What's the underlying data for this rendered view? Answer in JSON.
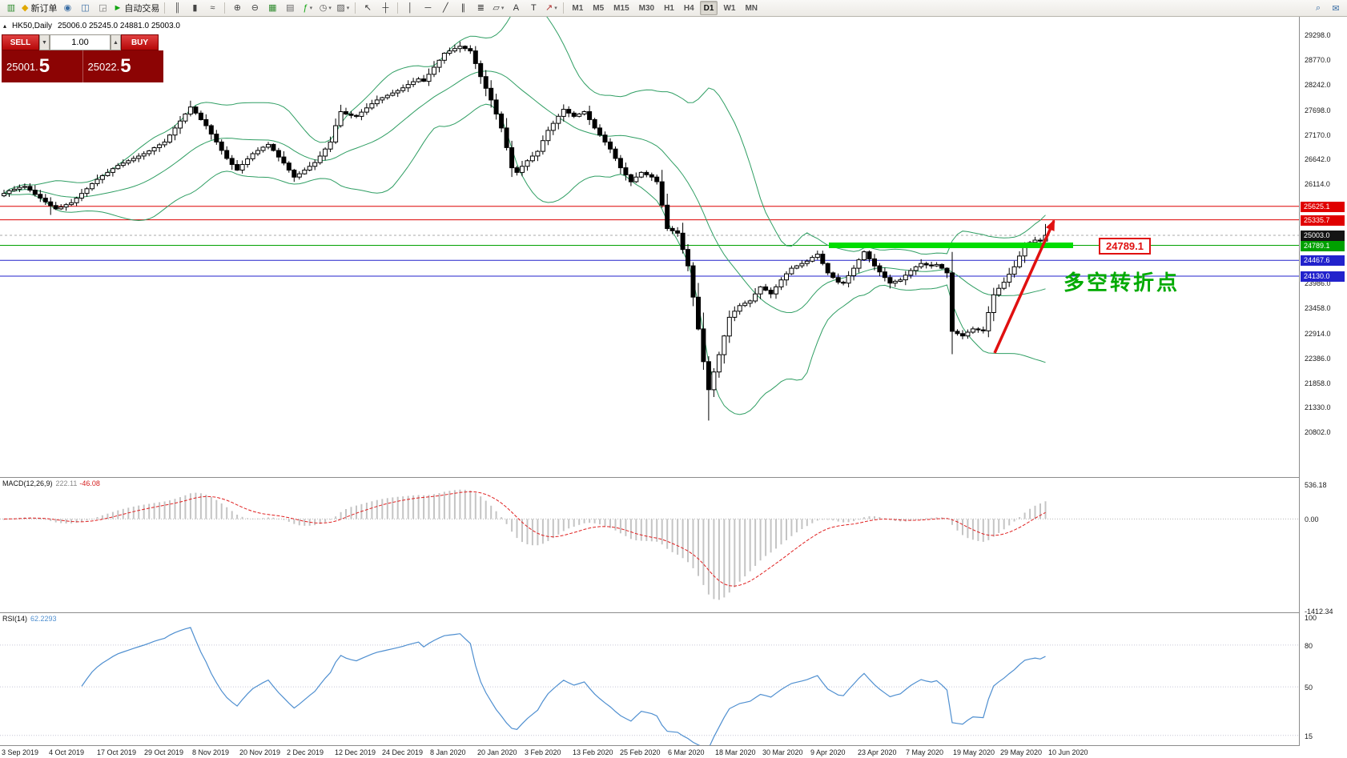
{
  "toolbar": {
    "items": [
      {
        "type": "icon",
        "name": "new-chart-icon",
        "glyph": "▥",
        "color": "#2e8b2e"
      },
      {
        "type": "button",
        "name": "new-order-button",
        "glyph": "◆",
        "color": "#e0a800",
        "label": "新订单"
      },
      {
        "type": "icon",
        "name": "profiles-icon",
        "glyph": "◉",
        "color": "#3a6ea5"
      },
      {
        "type": "icon",
        "name": "market-watch-icon",
        "glyph": "◫",
        "color": "#3a6ea5"
      },
      {
        "type": "icon",
        "name": "data-window-icon",
        "glyph": "◲",
        "color": "#777777"
      },
      {
        "type": "button",
        "name": "autotrade-button",
        "glyph": "►",
        "color": "#12a512",
        "label": "自动交易"
      },
      {
        "type": "divider"
      },
      {
        "type": "icon",
        "name": "bar-chart-icon",
        "glyph": "║",
        "color": "#444444"
      },
      {
        "type": "icon",
        "name": "candlestick-chart-icon",
        "glyph": "▮",
        "color": "#444444"
      },
      {
        "type": "icon",
        "name": "line-chart-icon",
        "glyph": "≈",
        "color": "#444444"
      },
      {
        "type": "divider"
      },
      {
        "type": "icon",
        "name": "zoom-in-icon",
        "glyph": "⊕",
        "color": "#444444"
      },
      {
        "type": "icon",
        "name": "zoom-out-icon",
        "glyph": "⊖",
        "color": "#444444"
      },
      {
        "type": "icon",
        "name": "tile-windows-icon",
        "glyph": "▦",
        "color": "#2e8b2e"
      },
      {
        "type": "icon",
        "name": "auto-arrange-icon",
        "glyph": "▤",
        "color": "#666666"
      },
      {
        "type": "icon",
        "name": "indicators-icon",
        "glyph": "ƒ",
        "color": "#12a512",
        "caret": true
      },
      {
        "type": "icon",
        "name": "periods-icon",
        "glyph": "◷",
        "color": "#555555",
        "caret": true
      },
      {
        "type": "icon",
        "name": "templates-icon",
        "glyph": "▨",
        "color": "#555555",
        "caret": true
      },
      {
        "type": "divider"
      },
      {
        "type": "icon",
        "name": "cursor-icon",
        "glyph": "↖",
        "color": "#333333"
      },
      {
        "type": "icon",
        "name": "crosshair-icon",
        "glyph": "┼",
        "color": "#333333"
      },
      {
        "type": "divider"
      },
      {
        "type": "icon",
        "name": "vertical-line-icon",
        "glyph": "│",
        "color": "#333333"
      },
      {
        "type": "icon",
        "name": "horizontal-line-icon",
        "glyph": "─",
        "color": "#333333"
      },
      {
        "type": "icon",
        "name": "trendline-icon",
        "glyph": "╱",
        "color": "#333333"
      },
      {
        "type": "icon",
        "name": "equidistant-channel-icon",
        "glyph": "∥",
        "color": "#333333"
      },
      {
        "type": "icon",
        "name": "fibonacci-icon",
        "glyph": "≣",
        "color": "#333333"
      },
      {
        "type": "icon",
        "name": "shapes-icon",
        "glyph": "▱",
        "color": "#333333",
        "caret": true
      },
      {
        "type": "icon",
        "name": "text-icon",
        "glyph": "A",
        "color": "#333333"
      },
      {
        "type": "icon",
        "name": "text-label-icon",
        "glyph": "T",
        "color": "#333333"
      },
      {
        "type": "icon",
        "name": "arrows-icon",
        "glyph": "↗",
        "color": "#b03030",
        "caret": true
      },
      {
        "type": "divider"
      }
    ],
    "timeframes": [
      "M1",
      "M5",
      "M15",
      "M30",
      "H1",
      "H4",
      "D1",
      "W1",
      "MN"
    ],
    "active_timeframe": "D1",
    "right_items": [
      {
        "name": "search-icon",
        "glyph": "⌕"
      },
      {
        "name": "community-chat-icon",
        "glyph": "✉"
      }
    ]
  },
  "chart": {
    "collapse_glyph": "▴",
    "symbol_period": "HK50,Daily",
    "ohlc_text": "25006.0 25245.0 24881.0 25003.0"
  },
  "trade_panel": {
    "sell_label": "SELL",
    "buy_label": "BUY",
    "volume": "1.00",
    "vol_down_glyph": "▼",
    "vol_up_glyph": "▲",
    "sell_price_small": "25001.",
    "sell_price_big": "5",
    "buy_price_small": "25022.",
    "buy_price_big": "5"
  },
  "chart_data": {
    "type": "candlestick",
    "symbol": "HK50",
    "period": "Daily",
    "current_ohlc": {
      "open": 25006.0,
      "high": 25245.0,
      "low": 24881.0,
      "close": 25003.0
    },
    "price_range": {
      "max": 29680,
      "min": 19830
    },
    "price_axis_labels": [
      "29298.0",
      "28770.0",
      "28242.0",
      "27698.0",
      "27170.0",
      "26642.0",
      "26114.0",
      "23986.0",
      "23458.0",
      "22914.0",
      "22386.0",
      "21858.0",
      "21330.0",
      "20802.0"
    ],
    "axis_badges": [
      {
        "text": "25625.1",
        "bg": "#e00000"
      },
      {
        "text": "25335.7",
        "bg": "#e00000"
      },
      {
        "text": "25003.0",
        "bg": "#141414"
      },
      {
        "text": "24789.1",
        "bg": "#00a000"
      },
      {
        "text": "24467.6",
        "bg": "#2222cc"
      },
      {
        "text": "24130.0",
        "bg": "#2222cc"
      }
    ],
    "hlines": [
      {
        "price": 25625.1,
        "color": "#dd0000"
      },
      {
        "price": 25335.7,
        "color": "#dd0000"
      },
      {
        "price": 24789.1,
        "color": "#00a000"
      },
      {
        "price": 24467.6,
        "color": "#2222cc"
      },
      {
        "price": 24130.0,
        "color": "#2222cc"
      }
    ],
    "current_price_line": {
      "price": 25003.0,
      "color": "#aaaaaa"
    },
    "x_labels": [
      "3 Sep 2019",
      "4 Oct 2019",
      "17 Oct 2019",
      "29 Oct 2019",
      "8 Nov 2019",
      "20 Nov 2019",
      "2 Dec 2019",
      "12 Dec 2019",
      "24 Dec 2019",
      "8 Jan 2020",
      "20 Jan 2020",
      "3 Feb 2020",
      "13 Feb 2020",
      "25 Feb 2020",
      "6 Mar 2020",
      "18 Mar 2020",
      "30 Mar 2020",
      "9 Apr 2020",
      "23 Apr 2020",
      "7 May 2020",
      "19 May 2020",
      "29 May 2020",
      "10 Jun 2020"
    ],
    "open_first": 25850,
    "closes": [
      25900,
      25960,
      25990,
      26030,
      26050,
      25970,
      25880,
      25800,
      25720,
      25640,
      25570,
      25610,
      25660,
      25700,
      25800,
      25900,
      26000,
      26110,
      26200,
      26280,
      26350,
      26430,
      26500,
      26550,
      26600,
      26650,
      26700,
      26750,
      26810,
      26880,
      26940,
      27000,
      27150,
      27300,
      27450,
      27600,
      27750,
      27620,
      27480,
      27350,
      27170,
      27000,
      26820,
      26650,
      26520,
      26400,
      26520,
      26640,
      26750,
      26820,
      26890,
      26950,
      26820,
      26680,
      26550,
      26400,
      26250,
      26320,
      26400,
      26480,
      26560,
      26700,
      26850,
      27000,
      27350,
      27650,
      27600,
      27570,
      27550,
      27640,
      27730,
      27820,
      27900,
      27950,
      28000,
      28050,
      28100,
      28160,
      28230,
      28290,
      28350,
      28300,
      28450,
      28600,
      28750,
      28900,
      28950,
      29000,
      29050,
      29000,
      28950,
      28680,
      28400,
      28150,
      27900,
      27600,
      27300,
      26880,
      26450,
      26350,
      26480,
      26600,
      26700,
      26800,
      27030,
      27250,
      27400,
      27550,
      27700,
      27620,
      27550,
      27600,
      27650,
      27480,
      27300,
      27150,
      27000,
      26850,
      26650,
      26450,
      26300,
      26150,
      26250,
      26350,
      26300,
      26250,
      26150,
      25650,
      25150,
      25100,
      25050,
      24700,
      24350,
      23680,
      23000,
      22300,
      21700,
      22080,
      22450,
      22850,
      23250,
      23380,
      23500,
      23550,
      23600,
      23750,
      23900,
      23830,
      23750,
      23900,
      24050,
      24180,
      24300,
      24350,
      24400,
      24450,
      24530,
      24600,
      24400,
      24200,
      24100,
      24000,
      23980,
      24140,
      24300,
      24480,
      24650,
      24500,
      24350,
      24220,
      24100,
      23980,
      24020,
      24050,
      24150,
      24250,
      24330,
      24400,
      24370,
      24350,
      24380,
      24300,
      24200,
      22950,
      22900,
      22850,
      22930,
      23000,
      22980,
      22960,
      23350,
      23730,
      23870,
      24000,
      24170,
      24330,
      24560,
      24780,
      24850,
      24900,
      24880,
      25003
    ],
    "wick_overrides": {
      "highs": {
        "88": 29150,
        "201": 25245
      },
      "lows": {
        "9": 25440,
        "136": 21040,
        "183": 22460,
        "201": 24881
      }
    },
    "candle": {
      "bull": "#ffffff",
      "bear": "#000000",
      "outline": "#000000"
    },
    "bollinger": {
      "period": 20,
      "deviation": 2,
      "color": "#2f9e63"
    },
    "annotations": {
      "support_bar": {
        "price": 24789.1,
        "x1_frac": 0.638,
        "x2_frac": 0.826,
        "color": "#00dd00",
        "thickness": 7
      },
      "trend_arrow": {
        "x1_frac": 0.766,
        "price1": 22486,
        "x2_frac": 0.8114,
        "price2": 25312,
        "color": "#e01010",
        "width": 3.5
      },
      "price_flag": {
        "text": "24789.1",
        "x_frac": 0.846,
        "price": 24789.1,
        "color": "#e01010"
      },
      "cn_note": {
        "text": "多空转折点",
        "x_frac": 0.8185,
        "price": 24335,
        "color": "#00aa00",
        "font_size": 26
      }
    },
    "macd": {
      "label": "MACD(12,26,9)",
      "value_main": "222.11",
      "value_signal": "-46.08",
      "params": {
        "fast": 12,
        "slow": 26,
        "signal": 9
      },
      "axis_labels": [
        "536.18",
        "0.00",
        "-1412.34"
      ],
      "range": {
        "max": 634,
        "min": -1438
      },
      "hist_color": "#c4c4c4",
      "signal_color": "#e02020"
    },
    "rsi": {
      "label": "RSI(14)",
      "value": "62.2293",
      "period": 14,
      "axis_labels": [
        "100",
        "80",
        "50",
        "15"
      ],
      "levels": [
        80,
        50,
        15
      ],
      "range": {
        "max": 103,
        "min": 8
      },
      "color": "#4f8fd0"
    }
  }
}
